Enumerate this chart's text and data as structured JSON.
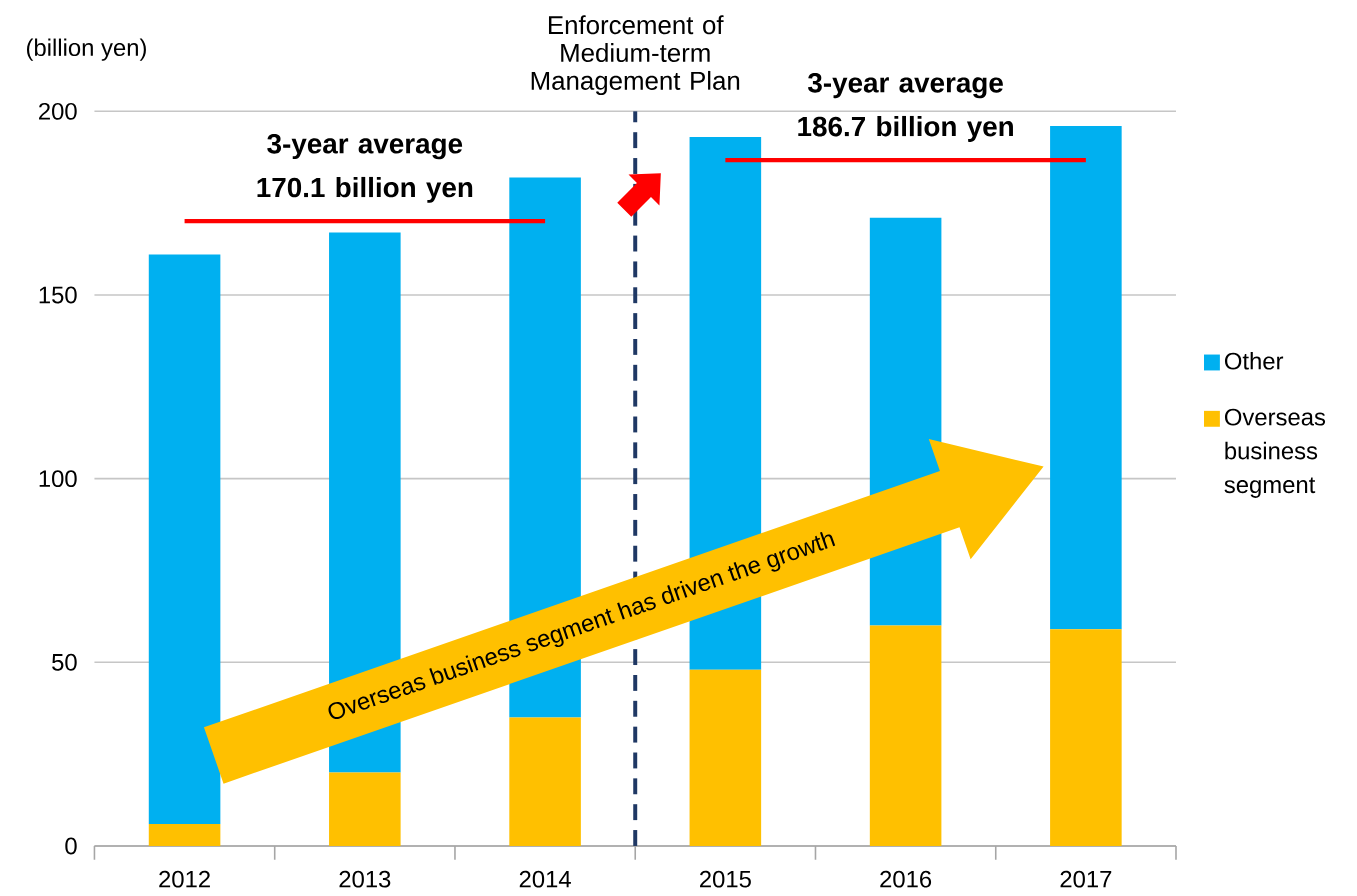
{
  "chart_data": {
    "type": "bar",
    "ylabel": "(billion yen)",
    "categories": [
      "2012",
      "2013",
      "2014",
      "2015",
      "2016",
      "2017"
    ],
    "stacked": true,
    "series": [
      {
        "name": "Overseas business segment",
        "color": "#ffc000",
        "values": [
          6,
          20,
          35,
          48,
          60,
          59
        ]
      },
      {
        "name": "Other",
        "color": "#00b0f0",
        "values": [
          155,
          147,
          147,
          145,
          111,
          137
        ]
      },
      {
        "type": "line",
        "color": "#ff0000",
        "values": [
          170.1,
          170.1,
          170.1,
          null,
          null,
          null
        ]
      },
      {
        "type": "line",
        "color": "#ff0000",
        "values": [
          null,
          null,
          null,
          186.7,
          186.7,
          186.7
        ]
      }
    ],
    "ylim": [
      0,
      200
    ],
    "yticks": [
      0,
      50,
      100,
      150,
      200
    ],
    "grid": "y",
    "legend": "right",
    "marker": "none",
    "annotations": [
      {
        "text": "3-year average 170.1 billion yen",
        "x": "2013",
        "y": 170.1
      },
      {
        "text": "3-year average 186.7 billion yen",
        "x": "2016",
        "y": 186.7
      },
      "Overseas business segment has driven the growth",
      "Enforcement of Medium-term Management Plan"
    ]
  }
}
